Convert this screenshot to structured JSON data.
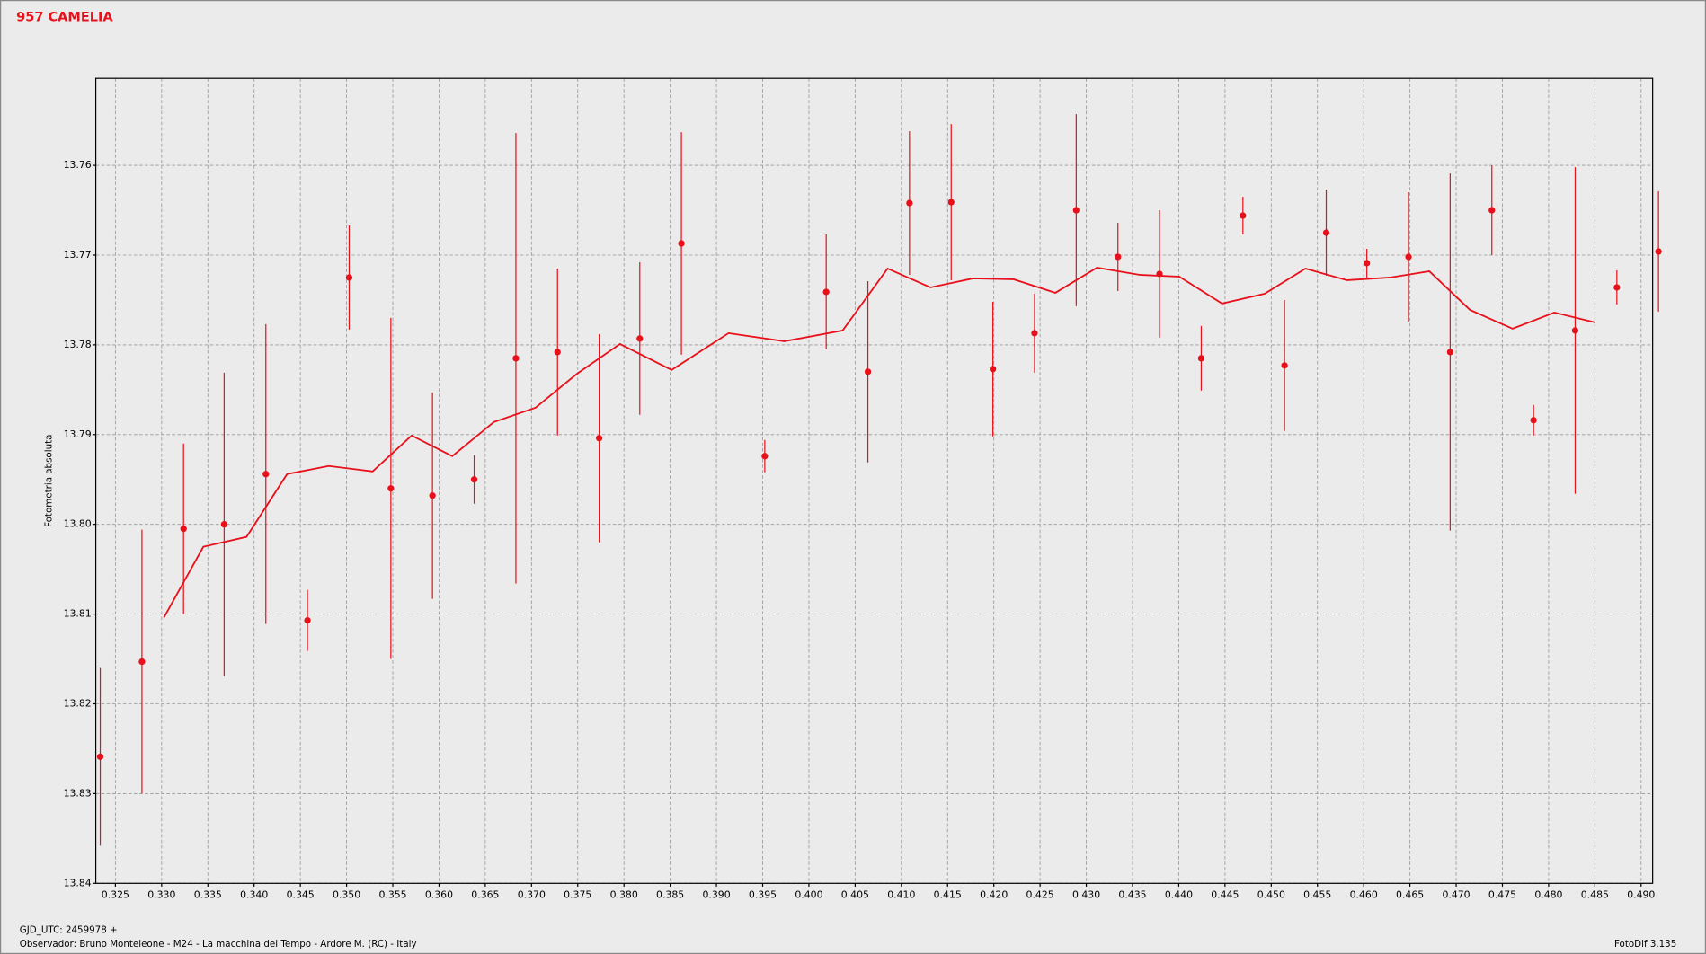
{
  "chart_data": {
    "type": "scatter",
    "title": "957 CAMELIA",
    "y_label": "Fotometria absoluta",
    "x_label": "GJD_UTC: 2459978 +",
    "footer_left": "Observador: Bruno Monteleone - M24 - La macchina del Tempo - Ardore M. (RC) - Italy",
    "footer_right": "FotoDif 3.135",
    "color": "#e8101a",
    "grid": true,
    "xlim": [
      0.32288,
      0.49125
    ],
    "ylim": [
      13.84,
      13.7503
    ],
    "xticks": [
      0.325,
      {
        "value": 0.33,
        "label": "0.330"
      },
      0.335,
      {
        "value": 0.34,
        "label": "0.340"
      },
      0.345,
      {
        "value": 0.35,
        "label": "0.350"
      },
      0.355,
      {
        "value": 0.36,
        "label": "0.360"
      },
      0.365,
      {
        "value": 0.37,
        "label": "0.370"
      },
      0.375,
      {
        "value": 0.38,
        "label": "0.380"
      },
      0.385,
      {
        "value": 0.39,
        "label": "0.390"
      },
      0.395,
      {
        "value": 0.4,
        "label": "0.400"
      },
      0.405,
      {
        "value": 0.41,
        "label": "0.410"
      },
      0.415,
      {
        "value": 0.42,
        "label": "0.420"
      },
      0.425,
      {
        "value": 0.43,
        "label": "0.430"
      },
      0.435,
      {
        "value": 0.44,
        "label": "0.440"
      },
      0.445,
      {
        "value": 0.45,
        "label": "0.450"
      },
      0.455,
      {
        "value": 0.46,
        "label": "0.460"
      },
      0.465,
      {
        "value": 0.47,
        "label": "0.470"
      },
      0.475,
      {
        "value": 0.48,
        "label": "0.480"
      },
      0.485,
      {
        "value": 0.49,
        "label": "0.490"
      }
    ],
    "yticks": [
      13.76,
      13.77,
      13.78,
      13.79,
      {
        "value": 13.8,
        "label": "13.80"
      },
      13.81,
      13.82,
      13.83,
      13.84
    ],
    "series": [
      {
        "type": "errorbar",
        "x": [
          0.32336,
          0.32787,
          0.33237,
          0.33676,
          0.34127,
          0.34577,
          0.35028,
          0.35479,
          0.35929,
          0.3638,
          0.36831,
          0.37281,
          0.37732,
          0.38171,
          0.38621,
          0.39523,
          0.40187,
          0.40638,
          0.41088,
          0.41539,
          0.4199,
          0.4244,
          0.42891,
          0.43342,
          0.43792,
          0.44243,
          0.44694,
          0.45144,
          0.45595,
          0.46034,
          0.46485,
          0.46935,
          0.47386,
          0.47837,
          0.48287,
          0.48738,
          0.49188
        ],
        "values": [
          13.8259,
          13.8153,
          13.8005,
          13.8,
          13.7944,
          13.8107,
          13.7725,
          13.796,
          13.7968,
          13.795,
          13.7815,
          13.7808,
          13.7904,
          13.7793,
          13.7687,
          13.7924,
          13.7741,
          13.783,
          13.7642,
          13.7641,
          13.7827,
          13.7787,
          13.765,
          13.7702,
          13.7721,
          13.7815,
          13.7656,
          13.7823,
          13.7675,
          13.7709,
          13.7702,
          13.7808,
          13.765,
          13.7884,
          13.7784,
          13.7736,
          13.7696
        ],
        "errors": [
          0.0099,
          0.0147,
          0.0095,
          0.0169,
          0.0167,
          0.0034,
          0.0058,
          0.019,
          0.0115,
          0.0027,
          0.0251,
          0.0093,
          0.0116,
          0.0085,
          0.0124,
          0.0018,
          0.0064,
          0.0101,
          0.008,
          0.0087,
          0.0075,
          0.0044,
          0.0107,
          0.0038,
          0.0071,
          0.0036,
          0.0021,
          0.0073,
          0.0048,
          0.0016,
          0.0072,
          0.0199,
          0.005,
          0.0017,
          0.0182,
          0.0019,
          0.0067
        ]
      },
      {
        "type": "line",
        "x": [
          0.33024,
          0.33451,
          0.33918,
          0.34357,
          0.34807,
          0.35282,
          0.35704,
          0.36143,
          0.36593,
          0.37044,
          0.37495,
          0.37957,
          0.38515,
          0.39131,
          0.39736,
          0.40365,
          0.40851,
          0.41314,
          0.41776,
          0.42215,
          0.42666,
          0.43116,
          0.43579,
          0.44006,
          0.44468,
          0.44931,
          0.4537,
          0.4582,
          0.46283,
          0.4671,
          0.47149,
          0.47611,
          0.48062,
          0.48501
        ],
        "values": [
          13.8104,
          13.8025,
          13.8014,
          13.7944,
          13.7935,
          13.7941,
          13.7901,
          13.7924,
          13.7886,
          13.787,
          13.7832,
          13.7799,
          13.7828,
          13.7787,
          13.7796,
          13.7784,
          13.7715,
          13.7736,
          13.7726,
          13.7727,
          13.7742,
          13.7714,
          13.7722,
          13.7724,
          13.7754,
          13.7743,
          13.7715,
          13.7728,
          13.7725,
          13.7718,
          13.7761,
          13.7782,
          13.7764,
          13.7775
        ]
      }
    ]
  }
}
